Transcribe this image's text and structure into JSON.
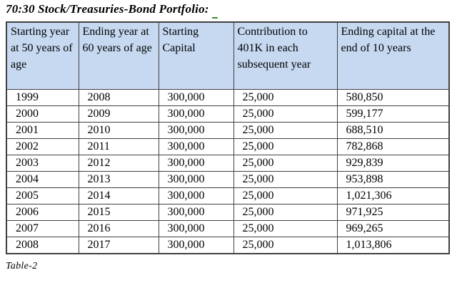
{
  "title": "70:30 Stock/Treasuries-Bond Portfolio:",
  "caption": "Table-2",
  "table": {
    "headers": [
      "Starting year at 50 years of age",
      "Ending year at 60 years of age",
      "Starting Capital",
      "Contribution to 401K in each subsequent year",
      "Ending capital at the end of 10 years"
    ],
    "rows": [
      [
        "1999",
        "2008",
        "300,000",
        "25,000",
        "580,850"
      ],
      [
        "2000",
        "2009",
        "300,000",
        "25,000",
        "599,177"
      ],
      [
        "2001",
        "2010",
        "300,000",
        "25,000",
        "688,510"
      ],
      [
        "2002",
        "2011",
        "300,000",
        "25,000",
        "782,868"
      ],
      [
        "2003",
        "2012",
        "300,000",
        "25,000",
        "929,839"
      ],
      [
        "2004",
        "2013",
        "300,000",
        "25,000",
        "953,898"
      ],
      [
        "2005",
        "2014",
        "300,000",
        "25,000",
        "1,021,306"
      ],
      [
        "2006",
        "2015",
        "300,000",
        "25,000",
        "971,925"
      ],
      [
        "2007",
        "2016",
        "300,000",
        "25,000",
        "969,265"
      ],
      [
        "2008",
        "2017",
        "300,000",
        "25,000",
        "1,013,806"
      ]
    ]
  },
  "colors": {
    "header_bg": "#c6d9f1",
    "border": "#404040",
    "text": "#000000",
    "spellcheck_green": "#2e8b2e"
  }
}
